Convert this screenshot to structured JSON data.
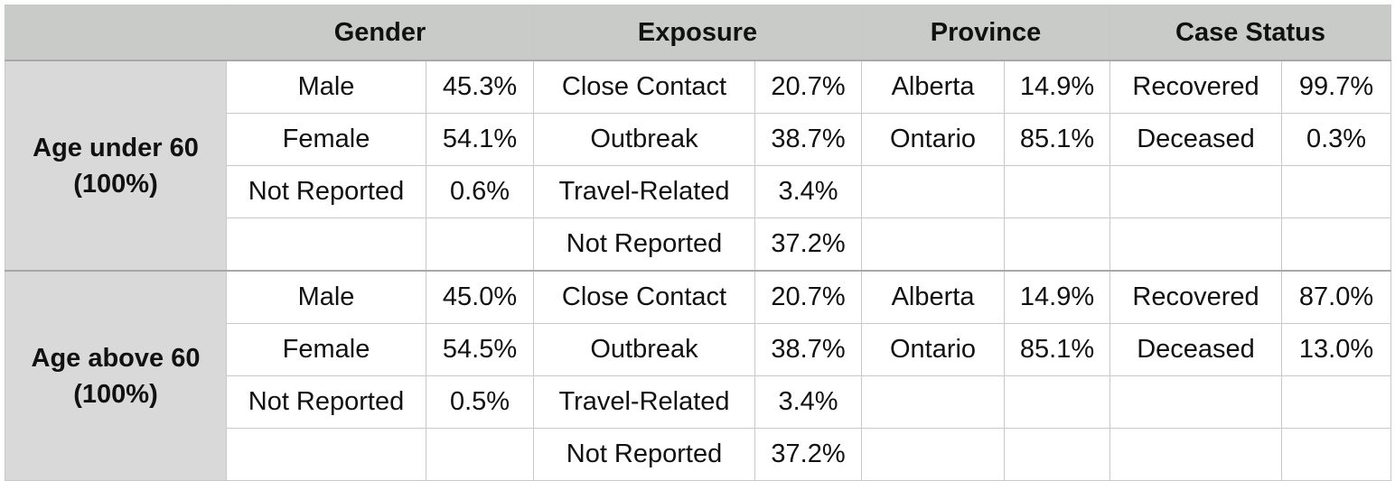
{
  "headers": {
    "corner": "",
    "gender": "Gender",
    "exposure": "Exposure",
    "province": "Province",
    "case_status": "Case Status"
  },
  "colors": {
    "accent": "#0e7468",
    "header_bg": "#c9cbc9",
    "age_bg": "#d9d9d9",
    "grid": "#c8c8c8"
  },
  "groups": [
    {
      "age_label": "Age under 60",
      "age_total": "(100%)",
      "rows": [
        {
          "gender": "Male",
          "gender_pct": "45.3%",
          "exposure": "Close Contact",
          "exposure_pct": "20.7%",
          "province": "Alberta",
          "province_pct": "14.9%",
          "status": "Recovered",
          "status_pct": "99.7%"
        },
        {
          "gender": "Female",
          "gender_pct": "54.1%",
          "exposure": "Outbreak",
          "exposure_pct": "38.7%",
          "province": "Ontario",
          "province_pct": "85.1%",
          "status": "Deceased",
          "status_pct": "0.3%"
        },
        {
          "gender": "Not Reported",
          "gender_pct": "0.6%",
          "exposure": "Travel-Related",
          "exposure_pct": "3.4%",
          "province": "",
          "province_pct": "",
          "status": "",
          "status_pct": ""
        },
        {
          "gender": "",
          "gender_pct": "",
          "exposure": "Not Reported",
          "exposure_pct": "37.2%",
          "province": "",
          "province_pct": "",
          "status": "",
          "status_pct": ""
        }
      ]
    },
    {
      "age_label": "Age above 60",
      "age_total": "(100%)",
      "rows": [
        {
          "gender": "Male",
          "gender_pct": "45.0%",
          "exposure": "Close Contact",
          "exposure_pct": "20.7%",
          "province": "Alberta",
          "province_pct": "14.9%",
          "status": "Recovered",
          "status_pct": "87.0%"
        },
        {
          "gender": "Female",
          "gender_pct": "54.5%",
          "exposure": "Outbreak",
          "exposure_pct": "38.7%",
          "province": "Ontario",
          "province_pct": "85.1%",
          "status": "Deceased",
          "status_pct": "13.0%"
        },
        {
          "gender": "Not Reported",
          "gender_pct": "0.5%",
          "exposure": "Travel-Related",
          "exposure_pct": "3.4%",
          "province": "",
          "province_pct": "",
          "status": "",
          "status_pct": ""
        },
        {
          "gender": "",
          "gender_pct": "",
          "exposure": "Not Reported",
          "exposure_pct": "37.2%",
          "province": "",
          "province_pct": "",
          "status": "",
          "status_pct": ""
        }
      ]
    }
  ]
}
